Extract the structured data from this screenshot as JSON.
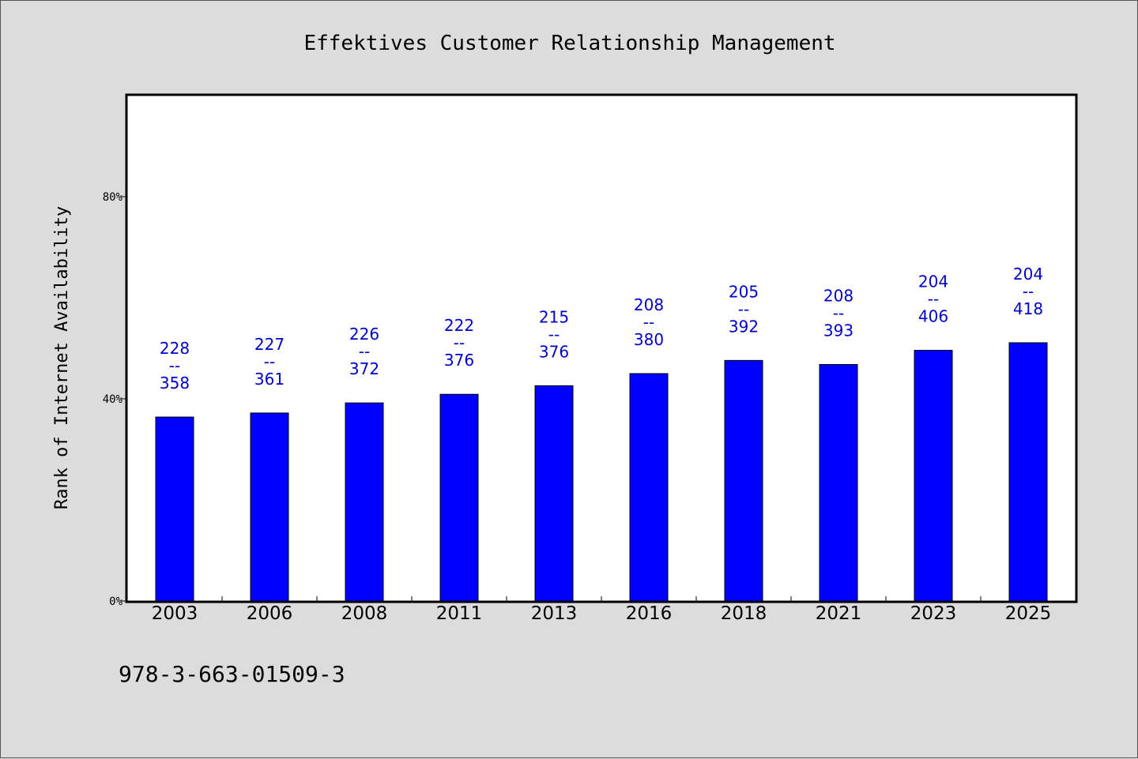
{
  "footer_code": "978-3-663-01509-3",
  "colors": {
    "bar": "#0000ff",
    "label": "#0000cc",
    "background": "#dcdcdc",
    "plot_bg": "#ffffff"
  },
  "chart_data": {
    "type": "bar",
    "title": "Effektives Customer Relationship Management",
    "xlabel": "",
    "ylabel": "Rank of Internet Availability",
    "categories": [
      "2003",
      "2006",
      "2008",
      "2011",
      "2013",
      "2016",
      "2018",
      "2021",
      "2023",
      "2025"
    ],
    "values": [
      36.4,
      37.2,
      39.2,
      40.9,
      42.6,
      45.0,
      47.6,
      46.8,
      49.6,
      51.1
    ],
    "ylim": [
      0,
      100
    ],
    "yticks": [
      0,
      40,
      80
    ],
    "ytick_labels": [
      "0%",
      "40%",
      "80%"
    ],
    "data_labels": [
      [
        "228",
        "--",
        "358"
      ],
      [
        "227",
        "--",
        "361"
      ],
      [
        "226",
        "--",
        "372"
      ],
      [
        "222",
        "--",
        "376"
      ],
      [
        "215",
        "--",
        "376"
      ],
      [
        "208",
        "--",
        "380"
      ],
      [
        "205",
        "--",
        "392"
      ],
      [
        "208",
        "--",
        "393"
      ],
      [
        "204",
        "--",
        "406"
      ],
      [
        "204",
        "--",
        "418"
      ]
    ],
    "grid": false,
    "legend": "none"
  }
}
